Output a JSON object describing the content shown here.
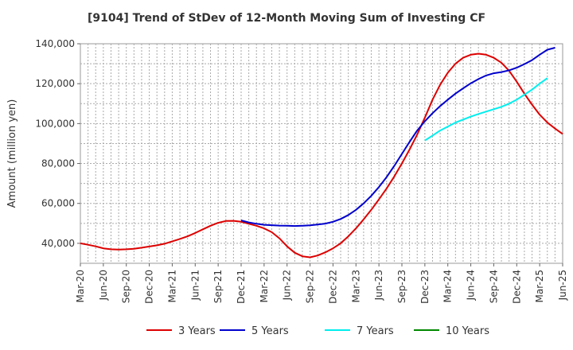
{
  "chart_data": {
    "type": "line",
    "title": "[9104]  Trend of StDev of 12-Month Moving Sum of Investing CF",
    "ylabel": "Amount (million yen)",
    "xlabel": "",
    "ylim": [
      30000,
      140000
    ],
    "y_ticks": [
      40000,
      60000,
      80000,
      100000,
      120000,
      140000
    ],
    "y_tick_labels": [
      "40,000",
      "60,000",
      "80,000",
      "100,000",
      "120,000",
      "140,000"
    ],
    "x_tick_labels": [
      "Mar-20",
      "Jun-20",
      "Sep-20",
      "Dec-20",
      "Mar-21",
      "Jun-21",
      "Sep-21",
      "Dec-21",
      "Mar-22",
      "Jun-22",
      "Sep-22",
      "Dec-22",
      "Mar-23",
      "Jun-23",
      "Sep-23",
      "Dec-23",
      "Mar-24",
      "Jun-24",
      "Sep-24",
      "Dec-24",
      "Mar-25",
      "Jun-25"
    ],
    "grid": true,
    "legend_position": "bottom",
    "series": [
      {
        "name": "3 Years",
        "color": "#dd0000",
        "start_month": 0,
        "values": [
          40000,
          39300,
          38500,
          37500,
          37000,
          36900,
          37000,
          37300,
          37800,
          38400,
          39000,
          39800,
          41000,
          42200,
          43500,
          45200,
          47000,
          48800,
          50300,
          51200,
          51300,
          50800,
          49800,
          48800,
          47500,
          45600,
          42500,
          38500,
          35300,
          33500,
          33000,
          33900,
          35500,
          37500,
          40000,
          43500,
          47500,
          52000,
          56800,
          62000,
          67500,
          73500,
          80000,
          87000,
          94500,
          103000,
          112000,
          119500,
          125500,
          130000,
          133000,
          134500,
          135000,
          134500,
          133000,
          130500,
          126500,
          121000,
          115000,
          109500,
          104500,
          100500,
          97500,
          94800
        ]
      },
      {
        "name": "5 Years",
        "color": "#0000cc",
        "start_month": 21,
        "values": [
          51500,
          50500,
          49800,
          49300,
          49100,
          48900,
          48800,
          48700,
          48800,
          49000,
          49400,
          49900,
          50800,
          52200,
          54200,
          56800,
          60000,
          63800,
          68200,
          73200,
          78800,
          84800,
          90800,
          96500,
          101200,
          105200,
          108800,
          112000,
          115000,
          117700,
          120200,
          122300,
          124100,
          125200,
          125800,
          126700,
          128000,
          129800,
          131800,
          134500,
          137000,
          138000
        ]
      },
      {
        "name": "7 Years",
        "color": "#00eeee",
        "start_month": 45,
        "values": [
          91500,
          94000,
          96500,
          98500,
          100500,
          102000,
          103500,
          104800,
          106000,
          107200,
          108400,
          110000,
          112000,
          114500,
          117000,
          120000,
          122800
        ]
      },
      {
        "name": "10 Years",
        "color": "#008800",
        "start_month": 0,
        "values": []
      }
    ]
  }
}
